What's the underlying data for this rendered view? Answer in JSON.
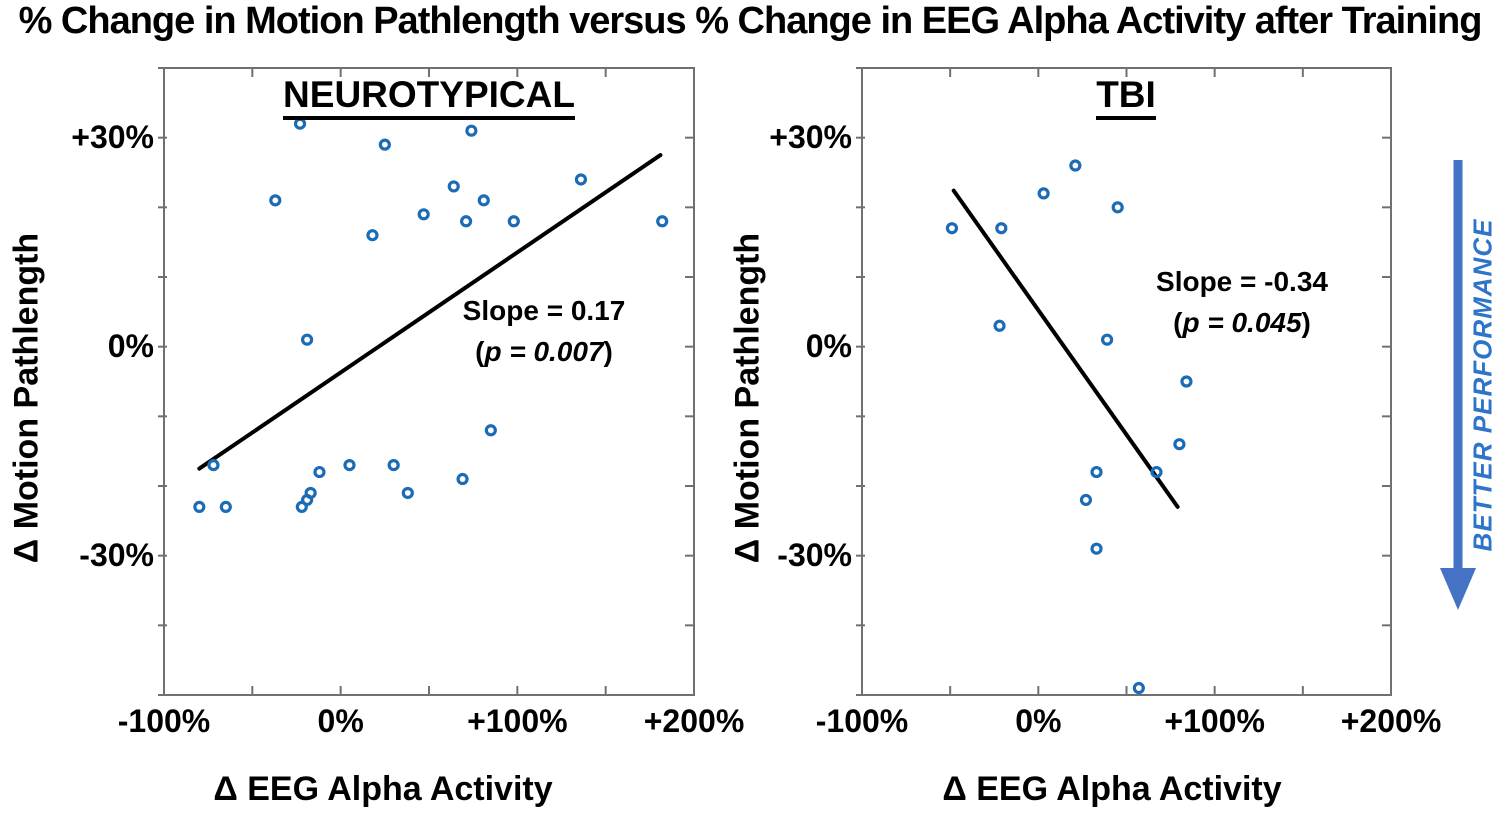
{
  "title": "% Change in Motion Pathlength versus % Change in EEG Alpha Activity after Training",
  "arrow": {
    "label": "BETTER  PERFORMANCE",
    "shaft_color": "#4472C4",
    "text_color": "#2E74C9",
    "direction": "down"
  },
  "style": {
    "marker_color": "#1B6CB5",
    "axis_color": "#707070",
    "fit_line_color": "#000000"
  },
  "chart_data": [
    {
      "type": "scatter",
      "title": "NEUROTYPICAL",
      "xlabel": "Δ EEG Alpha Activity",
      "ylabel": "Δ Motion Pathlength",
      "xlim": [
        -100,
        200
      ],
      "ylim": [
        -50,
        40
      ],
      "x_tick_step": 50,
      "y_tick_step": 10,
      "x_ticks_labeled": [
        -100,
        0,
        100,
        200
      ],
      "x_tick_labels": [
        "-100%",
        "0%",
        "+100%",
        "+200%"
      ],
      "y_ticks_labeled": [
        30,
        0,
        -30
      ],
      "y_tick_labels": [
        "+30%",
        "0%",
        "-30%"
      ],
      "grid": false,
      "points": [
        [
          -23,
          32
        ],
        [
          25,
          29
        ],
        [
          74,
          31
        ],
        [
          136,
          24
        ],
        [
          64,
          23
        ],
        [
          -37,
          21
        ],
        [
          81,
          21
        ],
        [
          47,
          19
        ],
        [
          71,
          18
        ],
        [
          98,
          18
        ],
        [
          182,
          18
        ],
        [
          18,
          16
        ],
        [
          -19,
          1
        ],
        [
          85,
          -12
        ],
        [
          -72,
          -17
        ],
        [
          -12,
          -18
        ],
        [
          5,
          -17
        ],
        [
          30,
          -17
        ],
        [
          69,
          -19
        ],
        [
          38,
          -21
        ],
        [
          -80,
          -23
        ],
        [
          -65,
          -23
        ],
        [
          -22,
          -23
        ],
        [
          -19,
          -22
        ],
        [
          -17,
          -21
        ]
      ],
      "fit_line": {
        "x1": -80,
        "y1": -17.5,
        "x2": 181,
        "y2": 27.5
      },
      "annotation": {
        "slope": "Slope = 0.17",
        "p_open": "(",
        "p_italic": "p = 0.007",
        "p_close": ")"
      }
    },
    {
      "type": "scatter",
      "title": "TBI",
      "xlabel": "Δ EEG Alpha Activity",
      "ylabel": "Δ Motion Pathlength",
      "xlim": [
        -100,
        200
      ],
      "ylim": [
        -50,
        40
      ],
      "x_tick_step": 50,
      "y_tick_step": 10,
      "x_ticks_labeled": [
        -100,
        0,
        100,
        200
      ],
      "x_tick_labels": [
        "-100%",
        "0%",
        "+100%",
        "+200%"
      ],
      "y_ticks_labeled": [
        30,
        0,
        -30
      ],
      "y_tick_labels": [
        "+30%",
        "0%",
        "-30%"
      ],
      "grid": false,
      "points": [
        [
          21,
          26
        ],
        [
          3,
          22
        ],
        [
          45,
          20
        ],
        [
          -49,
          17
        ],
        [
          -21,
          17
        ],
        [
          -22,
          3
        ],
        [
          39,
          1
        ],
        [
          84,
          -5
        ],
        [
          80,
          -14
        ],
        [
          33,
          -18
        ],
        [
          67,
          -18
        ],
        [
          27,
          -22
        ],
        [
          33,
          -29
        ],
        [
          57,
          -49
        ]
      ],
      "fit_line": {
        "x1": -48,
        "y1": 22.4,
        "x2": 79,
        "y2": -23
      },
      "annotation": {
        "slope": "Slope = -0.34",
        "p_open": "(",
        "p_italic": "p = 0.045",
        "p_close": ")"
      }
    }
  ]
}
